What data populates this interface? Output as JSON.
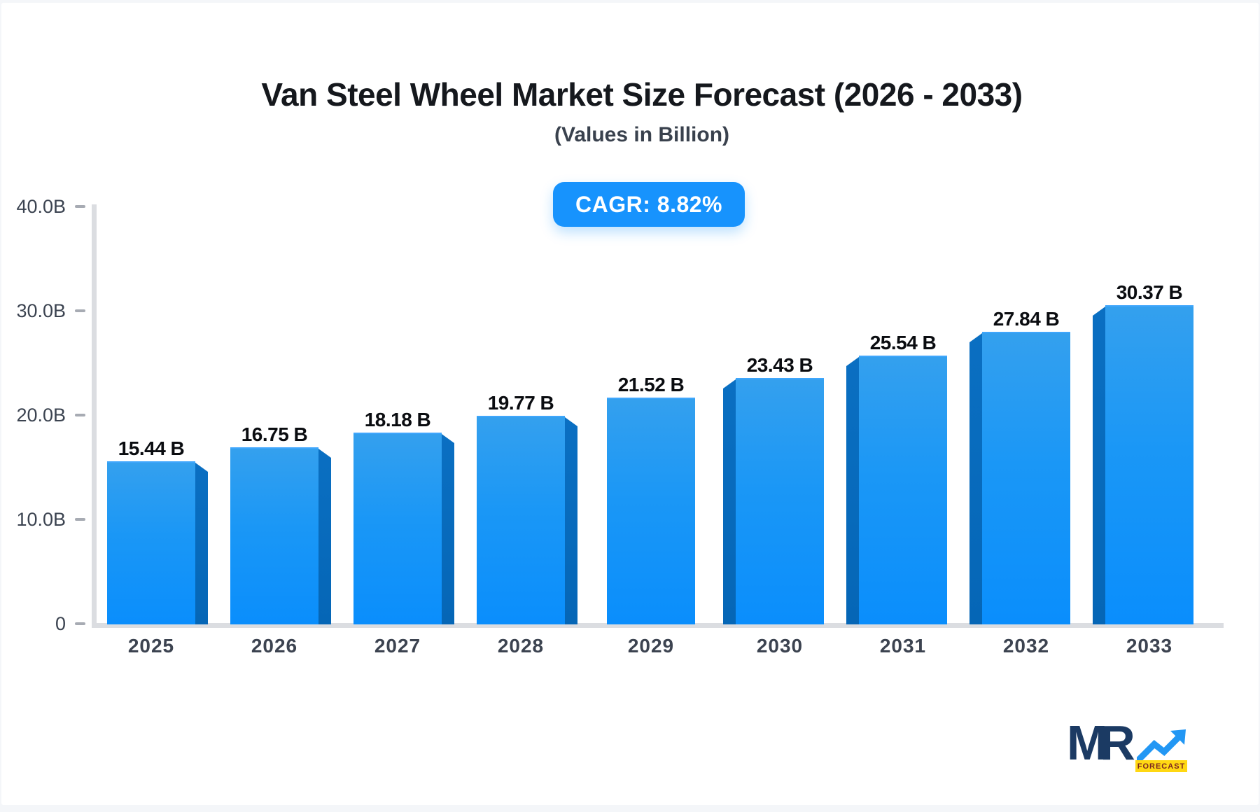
{
  "header": {
    "cagr_label": "CAGR: 8.82%"
  },
  "chart_data": {
    "type": "bar",
    "title": "Van Steel Wheel Market Size Forecast (2026 - 2033)",
    "subtitle": "(Values in Billion)",
    "cagr_label": "CAGR: 8.82%",
    "cagr_percent": 8.82,
    "categories": [
      "2025",
      "2026",
      "2027",
      "2028",
      "2029",
      "2030",
      "2031",
      "2032",
      "2033"
    ],
    "values": [
      15.44,
      16.75,
      18.18,
      19.77,
      21.52,
      23.43,
      25.54,
      27.84,
      30.37
    ],
    "value_labels": [
      "15.44 B",
      "16.75 B",
      "18.18 B",
      "19.77 B",
      "21.52 B",
      "23.43 B",
      "25.54 B",
      "27.84 B",
      "30.37 B"
    ],
    "value_suffix": " B",
    "y_ticks": [
      {
        "label": "40.0B",
        "value": 40
      },
      {
        "label": "30.0B",
        "value": 30
      },
      {
        "label": "20.0B",
        "value": 20
      },
      {
        "label": "10.0B",
        "value": 10
      },
      {
        "label": "0",
        "value": 0
      }
    ],
    "ylim": [
      0,
      40
    ],
    "grid": false,
    "legend": false,
    "colors": {
      "bar_face_top": "#34a0ee",
      "bar_face_bottom": "#0a8efc",
      "bar_side": "#0667b7",
      "axis": "#dbdde1",
      "tick": "#a7abb3",
      "axis_label": "#3b4350",
      "value_label": "#0a0c10",
      "badge_blue": "#1793fd",
      "badge_text": "#ffffff"
    }
  },
  "logo": {
    "mr_text": "MR",
    "forecast_text": "FORECAST",
    "colors": {
      "navy": "#1b3a63",
      "arrow_blue": "#2297f4",
      "yellow": "#ffd813",
      "forecast_text": "#7c2622"
    }
  }
}
